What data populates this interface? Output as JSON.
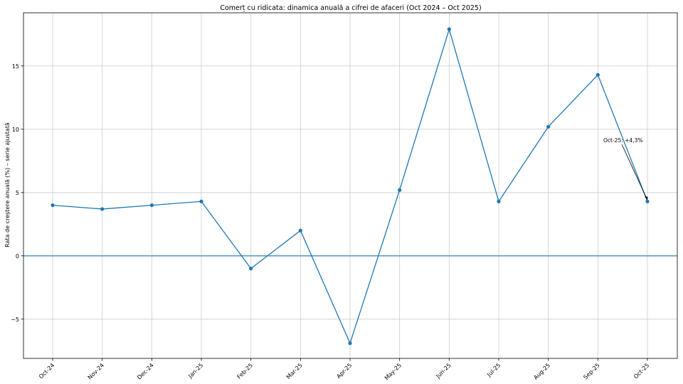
{
  "chart_data": {
    "type": "line",
    "title": "Comerț cu ridicata: dinamica anuală a cifrei de afaceri (Oct 2024 – Oct 2025)",
    "xlabel": "",
    "ylabel": "Rata de creștere anuală (%) – serie ajustată",
    "categories": [
      "Oct-24",
      "Nov-24",
      "Dec-24",
      "Jan-25",
      "Feb-25",
      "Mar-25",
      "Apr-25",
      "May-25",
      "Jun-25",
      "Jul-25",
      "Aug-25",
      "Sep-25",
      "Oct-25"
    ],
    "series": [
      {
        "values": [
          4.0,
          3.7,
          4.0,
          4.3,
          -1.0,
          2.0,
          -6.9,
          5.2,
          17.9,
          4.3,
          10.2,
          14.3,
          4.3
        ]
      }
    ],
    "ylim": [
      -8.1,
      19.2
    ],
    "yticks": [
      -5,
      0,
      5,
      10,
      15
    ],
    "ytick_labels": [
      "−5",
      "0",
      "5",
      "10",
      "15"
    ],
    "grid": true,
    "reference_line_y": 0,
    "annotation": {
      "text": "Oct-25: +4,3%",
      "category": "Oct-25",
      "value": 4.3
    },
    "colors": {
      "line": "#1f77b4",
      "grid": "#cccccc",
      "axes": "#000000"
    }
  }
}
